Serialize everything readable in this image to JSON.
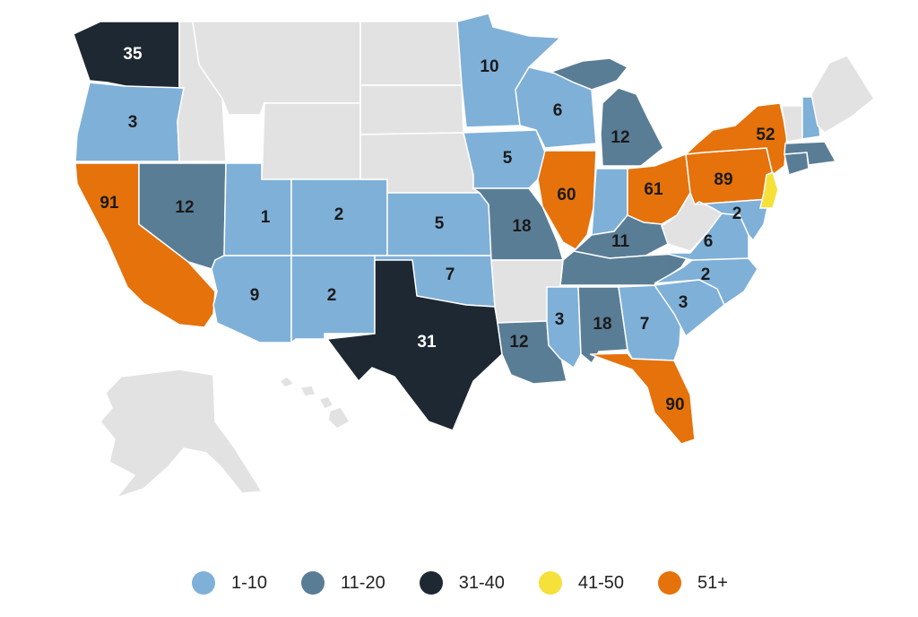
{
  "colors": {
    "none": "#e2e2e2",
    "light": "#7fb0d8",
    "mid": "#5a7d96",
    "dark": "#1e2832",
    "yellow": "#f6e03a",
    "orange": "#e5720b",
    "border": "#ffffff",
    "text_dark": "#1a1a1a",
    "text_light": "#ffffff"
  },
  "legend": [
    {
      "label": "1-10",
      "color": "#7fb0d8"
    },
    {
      "label": "11-20",
      "color": "#5a7d96"
    },
    {
      "label": "31-40",
      "color": "#1e2832"
    },
    {
      "label": "41-50",
      "color": "#f6e03a"
    },
    {
      "label": "51+",
      "color": "#e5720b"
    }
  ],
  "states": [
    {
      "id": "WA",
      "value": "35"
    },
    {
      "id": "OR",
      "value": "3"
    },
    {
      "id": "CA",
      "value": "91"
    },
    {
      "id": "NV",
      "value": "12"
    },
    {
      "id": "UT",
      "value": "1"
    },
    {
      "id": "CO",
      "value": "2"
    },
    {
      "id": "AZ",
      "value": "9"
    },
    {
      "id": "NM",
      "value": "2"
    },
    {
      "id": "KS",
      "value": "5"
    },
    {
      "id": "OK",
      "value": "7"
    },
    {
      "id": "TX",
      "value": "31"
    },
    {
      "id": "MN",
      "value": "10"
    },
    {
      "id": "IA",
      "value": "5"
    },
    {
      "id": "MO",
      "value": "18"
    },
    {
      "id": "WI",
      "value": "6"
    },
    {
      "id": "IL",
      "value": "60"
    },
    {
      "id": "MI",
      "value": "12"
    },
    {
      "id": "IN",
      "value": ""
    },
    {
      "id": "OH",
      "value": "61"
    },
    {
      "id": "KY",
      "value": "11"
    },
    {
      "id": "TN",
      "value": ""
    },
    {
      "id": "LA",
      "value": "12"
    },
    {
      "id": "MS",
      "value": "3"
    },
    {
      "id": "AL",
      "value": "18"
    },
    {
      "id": "GA",
      "value": "7"
    },
    {
      "id": "FL",
      "value": "90"
    },
    {
      "id": "SC",
      "value": "3"
    },
    {
      "id": "NC",
      "value": "2"
    },
    {
      "id": "VA",
      "value": "6"
    },
    {
      "id": "MD",
      "value": "2"
    },
    {
      "id": "PA",
      "value": "89"
    },
    {
      "id": "NY",
      "value": "52"
    },
    {
      "id": "NJ",
      "value": ""
    },
    {
      "id": "CT",
      "value": ""
    },
    {
      "id": "MA",
      "value": ""
    },
    {
      "id": "NH",
      "value": ""
    },
    {
      "id": "ID",
      "value": ""
    },
    {
      "id": "MT",
      "value": ""
    },
    {
      "id": "WY",
      "value": ""
    },
    {
      "id": "ND",
      "value": ""
    },
    {
      "id": "SD",
      "value": ""
    },
    {
      "id": "NE",
      "value": ""
    },
    {
      "id": "AR",
      "value": ""
    },
    {
      "id": "WV",
      "value": ""
    },
    {
      "id": "VT",
      "value": ""
    },
    {
      "id": "ME",
      "value": ""
    },
    {
      "id": "AK",
      "value": ""
    },
    {
      "id": "HI",
      "value": ""
    }
  ]
}
